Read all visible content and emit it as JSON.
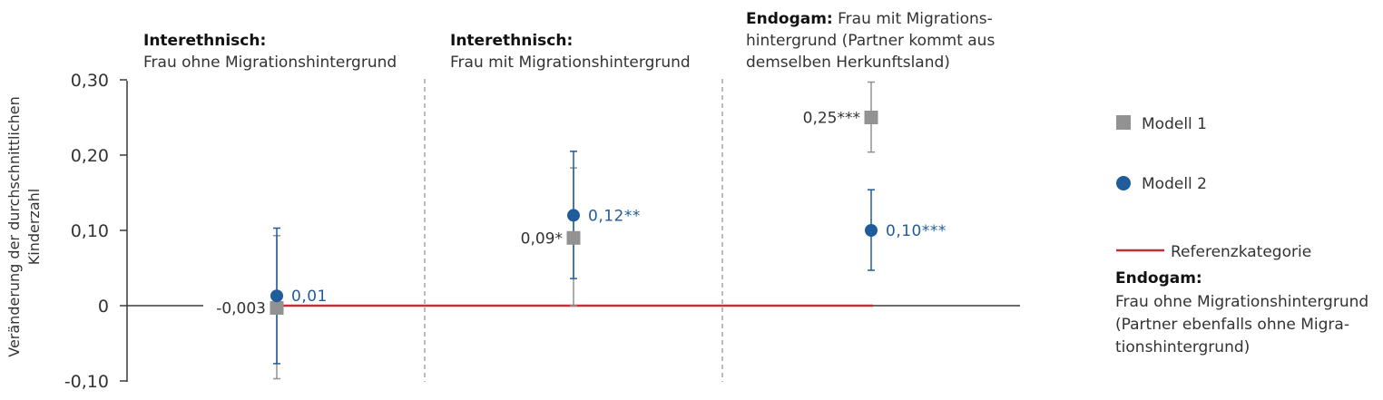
{
  "chart_data": {
    "type": "scatter",
    "ylabel_line1": "Veränderung der durchschnittlichen",
    "ylabel_line2": "Kinderzahl",
    "ylim": [
      -0.1,
      0.3
    ],
    "yticks": [
      {
        "value": 0.3,
        "label": "0,30"
      },
      {
        "value": 0.2,
        "label": "0,20"
      },
      {
        "value": 0.1,
        "label": "0,10"
      },
      {
        "value": 0.0,
        "label": "0"
      },
      {
        "value": -0.1,
        "label": "-0,10"
      }
    ],
    "categories": [
      {
        "lines": [
          {
            "bold": "Interethnisch:",
            "rest": ""
          },
          {
            "bold": "",
            "rest": "Frau ohne Migrationshintergrund"
          }
        ]
      },
      {
        "lines": [
          {
            "bold": "Interethnisch:",
            "rest": ""
          },
          {
            "bold": "",
            "rest": "Frau mit Migrationshintergrund"
          }
        ]
      },
      {
        "lines": [
          {
            "bold": "Endogam:",
            "rest": " Frau mit Migrations-"
          },
          {
            "bold": "",
            "rest": "hintergrund (Partner kommt aus"
          },
          {
            "bold": "",
            "rest": "demselben Herkunftsland)"
          }
        ]
      }
    ],
    "series": [
      {
        "name": "Modell 1",
        "marker": "square",
        "color": "#929292",
        "points": [
          {
            "value": -0.003,
            "low": -0.097,
            "high": 0.093,
            "label": "-0,003"
          },
          {
            "value": 0.09,
            "low": 0.0,
            "high": 0.183,
            "label": "0,09*"
          },
          {
            "value": 0.25,
            "low": 0.204,
            "high": 0.297,
            "label": "0,25***"
          }
        ]
      },
      {
        "name": "Modell 2",
        "marker": "circle",
        "color": "#1f5c99",
        "points": [
          {
            "value": 0.013,
            "low": -0.077,
            "high": 0.103,
            "label": "0,01"
          },
          {
            "value": 0.12,
            "low": 0.036,
            "high": 0.205,
            "label": "0,12**"
          },
          {
            "value": 0.1,
            "low": 0.047,
            "high": 0.154,
            "label": "0,10***"
          }
        ]
      }
    ],
    "reference": {
      "value": 0.0,
      "color": "#c0313c",
      "legend_label": "Referenzkategorie",
      "title": "Endogam:",
      "description_lines": [
        "Frau ohne Migrationshintergrund",
        "(Partner ebenfalls ohne Migra-",
        "tionshintergrund)"
      ]
    }
  }
}
